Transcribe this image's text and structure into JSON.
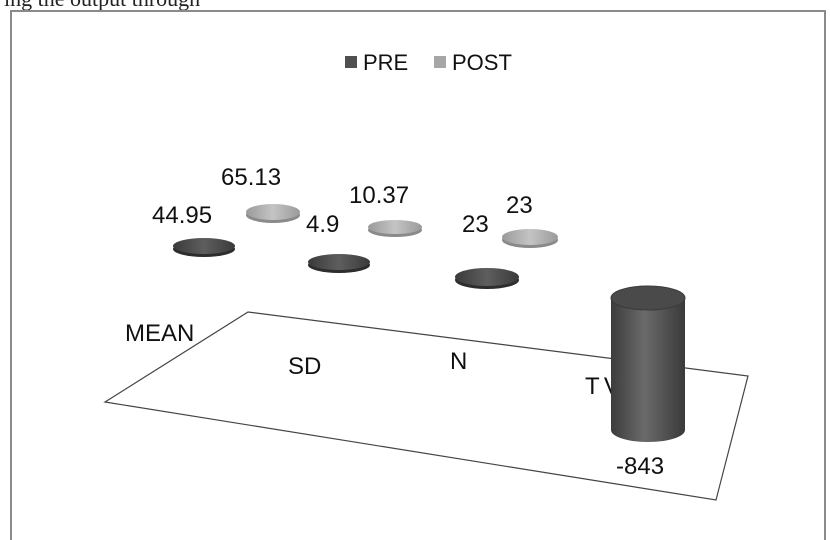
{
  "page": {
    "top_caption": "ing the output through"
  },
  "chart_data": {
    "type": "bar",
    "style": "3d-cylinder",
    "categories": [
      "MEAN",
      "SD",
      "N",
      "T VALUE"
    ],
    "series": [
      {
        "name": "PRE",
        "color": "#505050",
        "values": [
          44.95,
          4.9,
          23,
          -843
        ]
      },
      {
        "name": "POST",
        "color": "#a6a6a6",
        "values": [
          65.13,
          10.37,
          23,
          null
        ]
      }
    ],
    "data_labels": [
      "44.95",
      "65.13",
      "4.9",
      "10.37",
      "23",
      "23",
      "-843"
    ],
    "legend_position": "top",
    "grid": false
  }
}
